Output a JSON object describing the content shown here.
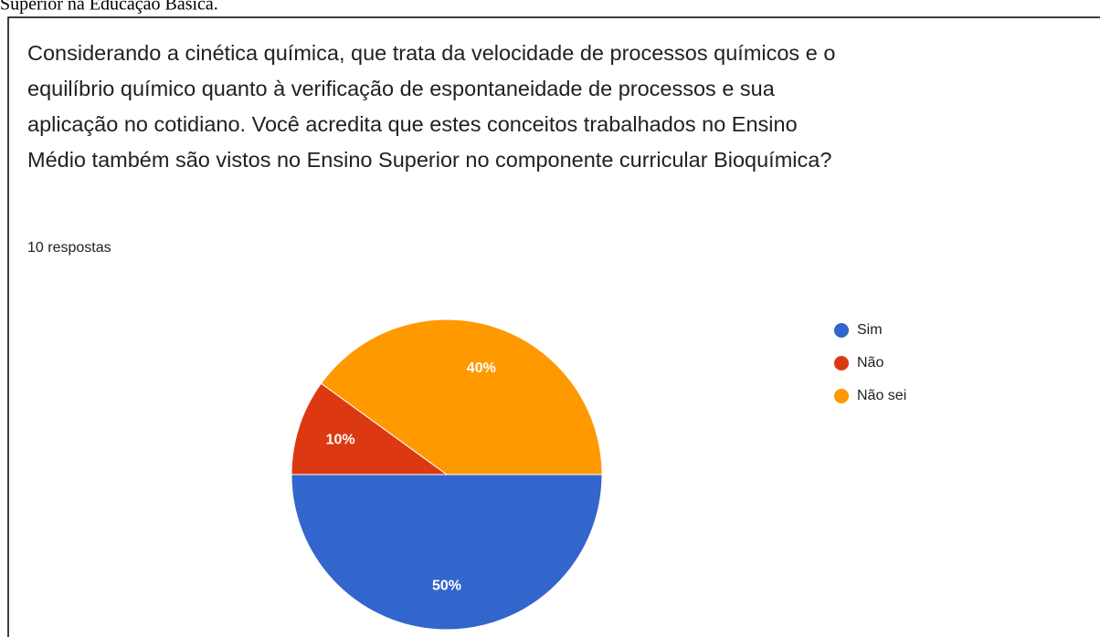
{
  "caption": "Superior na Educação Básica.",
  "chart_data": {
    "type": "pie",
    "title": [
      "Considerando a cinética química, que trata da velocidade de processos químicos e o",
      "equilíbrio químico quanto à verificação de espontaneidade de processos e sua",
      "aplicação no cotidiano. Você acredita que estes conceitos trabalhados no Ensino",
      "Médio também são vistos no Ensino Superior no componente curricular Bioquímica?"
    ],
    "subtitle": "10 respostas",
    "categories": [
      "Sim",
      "Não",
      "Não sei"
    ],
    "values": [
      50,
      10,
      40
    ],
    "value_labels": [
      "50%",
      "10%",
      "40%"
    ],
    "colors": [
      "#3366cc",
      "#dc3912",
      "#ff9900"
    ],
    "legend": "right"
  }
}
